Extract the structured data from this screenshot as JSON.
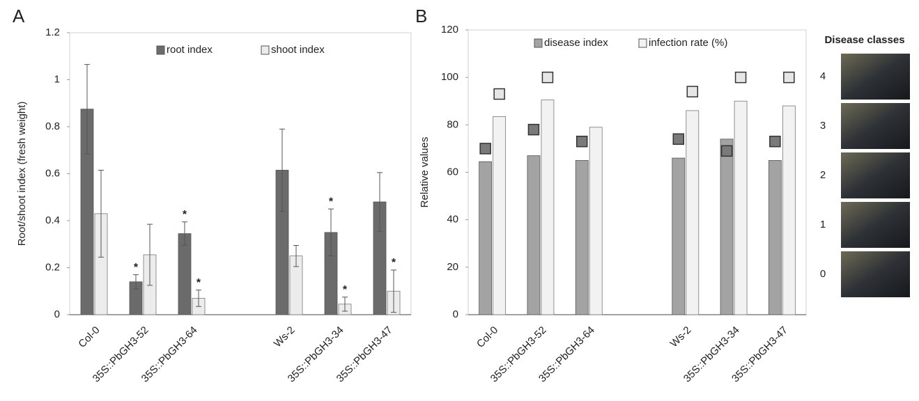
{
  "chart_data": [
    {
      "type": "bar",
      "panel": "A",
      "y_label": "Root/shoot index (fresh weight)",
      "categories": [
        "Col-0",
        "35S::PbGH3-52",
        "35S::PbGH3-64",
        null,
        "Ws-2",
        "35S::PbGH3-34",
        "35S::PbGH3-47"
      ],
      "series": [
        {
          "name": "root index",
          "color": "#6b6b6b",
          "values": [
            0.875,
            0.14,
            0.345,
            null,
            0.615,
            0.35,
            0.48
          ],
          "errors": [
            0.19,
            0.03,
            0.05,
            null,
            0.175,
            0.1,
            0.125
          ],
          "significance": [
            null,
            "*",
            "*",
            null,
            null,
            "*",
            null
          ]
        },
        {
          "name": "shoot index",
          "color": "#ececec",
          "values": [
            0.43,
            0.255,
            0.07,
            null,
            0.25,
            0.045,
            0.1
          ],
          "errors": [
            0.185,
            0.13,
            0.035,
            null,
            0.045,
            0.03,
            0.09
          ],
          "significance": [
            null,
            null,
            "*",
            null,
            null,
            "*",
            "*"
          ]
        }
      ],
      "ylim": [
        0,
        1.2
      ],
      "yticks": [
        0,
        0.2,
        0.4,
        0.6,
        0.8,
        1,
        1.2
      ]
    },
    {
      "type": "bar",
      "panel": "B",
      "y_label": "Relative values",
      "categories": [
        "Col-0",
        "35S::PbGH3-52",
        "35S::PbGH3-64",
        null,
        "Ws-2",
        "35S::PbGH3-34",
        "35S::PbGH3-47"
      ],
      "series": [
        {
          "name": "disease index",
          "color": "#a3a3a3",
          "values": [
            64.5,
            67,
            65,
            null,
            66,
            74,
            65
          ],
          "markers": [
            70,
            78,
            73,
            null,
            74,
            69,
            73
          ],
          "marker_color": "#7a7a7a"
        },
        {
          "name": "infection rate (%)",
          "color": "#f2f2f2",
          "values": [
            83.5,
            90.5,
            79,
            null,
            86,
            90,
            88
          ],
          "markers": [
            93,
            100,
            null,
            null,
            94,
            100,
            100
          ],
          "marker_color": "#e6e6e6"
        }
      ],
      "ylim": [
        0,
        120
      ],
      "yticks": [
        0,
        20,
        40,
        60,
        80,
        100,
        120
      ]
    }
  ],
  "disease_classes": {
    "title": "Disease classes",
    "classes": [
      "4",
      "3",
      "2",
      "1",
      "0"
    ]
  }
}
